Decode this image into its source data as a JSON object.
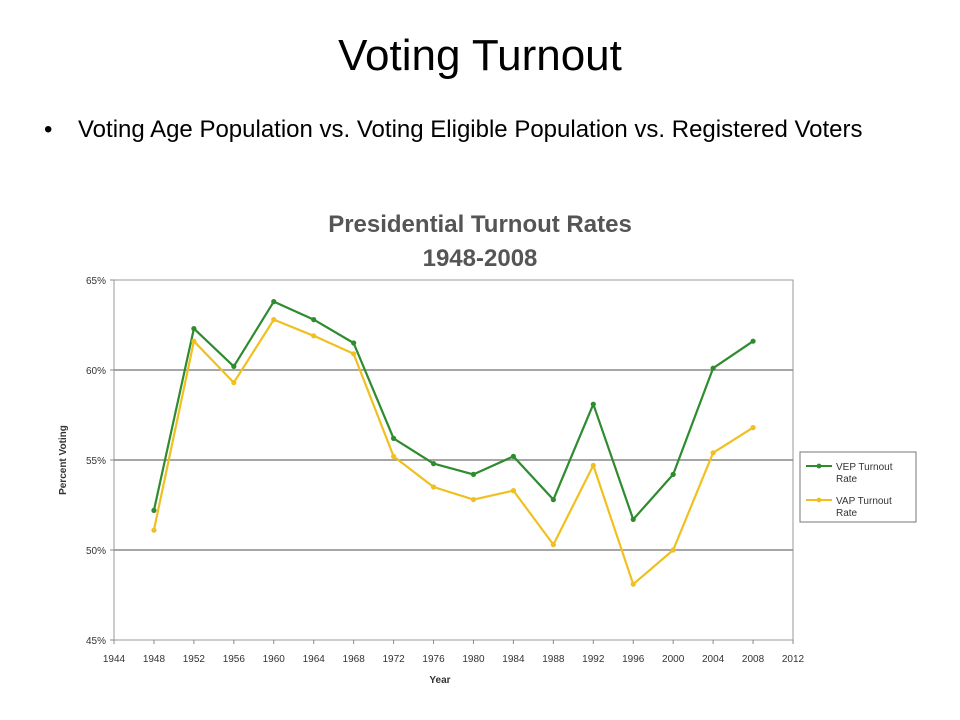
{
  "slide": {
    "title": "Voting Turnout",
    "bullet": "Voting Age Population vs. Voting Eligible Population vs. Registered Voters"
  },
  "chart_data": {
    "type": "line",
    "title": "Presidential Turnout Rates",
    "subtitle": "1948-2008",
    "xlabel": "Year",
    "ylabel": "Percent Voting",
    "xlim": [
      1944,
      2012
    ],
    "ylim": [
      45,
      65
    ],
    "x_ticks": [
      "1944",
      "1948",
      "1952",
      "1956",
      "1960",
      "1964",
      "1968",
      "1972",
      "1976",
      "1980",
      "1984",
      "1988",
      "1992",
      "1996",
      "2000",
      "2004",
      "2008",
      "2012"
    ],
    "y_ticks": [
      "45%",
      "50%",
      "55%",
      "60%",
      "65%"
    ],
    "grid": "horizontal",
    "legend_position": "right",
    "x": [
      1948,
      1952,
      1956,
      1960,
      1964,
      1968,
      1972,
      1976,
      1980,
      1984,
      1988,
      1992,
      1996,
      2000,
      2004,
      2008
    ],
    "series": [
      {
        "name": "VEP Turnout Rate",
        "color": "#2e8b2e",
        "values": [
          52.2,
          62.3,
          60.2,
          63.8,
          62.8,
          61.5,
          56.2,
          54.8,
          54.2,
          55.2,
          52.8,
          58.1,
          51.7,
          54.2,
          60.1,
          61.6
        ]
      },
      {
        "name": "VAP Turnout Rate",
        "color": "#f0c020",
        "values": [
          51.1,
          61.6,
          59.3,
          62.8,
          61.9,
          60.9,
          55.2,
          53.5,
          52.8,
          53.3,
          50.3,
          54.7,
          48.1,
          50.0,
          55.4,
          56.8
        ]
      }
    ]
  }
}
